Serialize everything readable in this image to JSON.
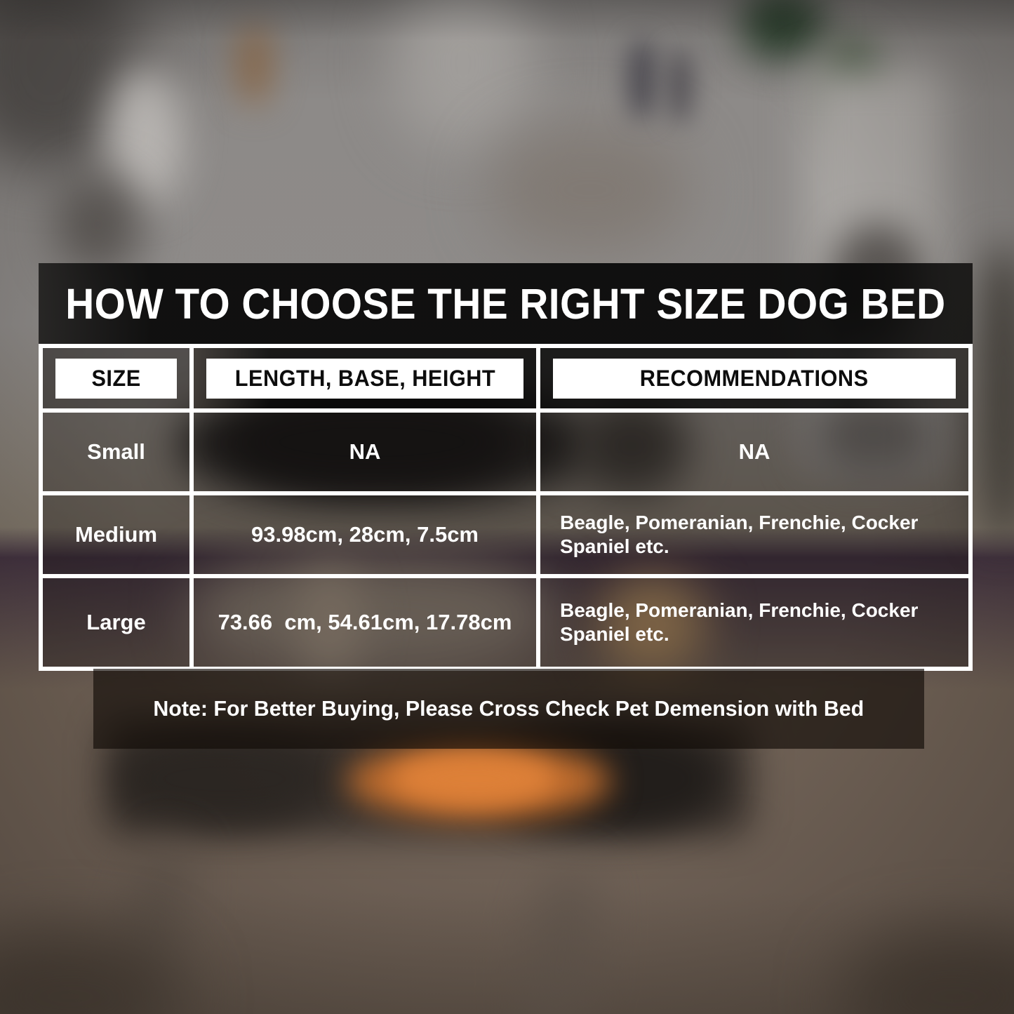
{
  "banner": {
    "title": "HOW TO CHOOSE THE RIGHT SIZE DOG BED"
  },
  "table": {
    "headers": [
      "SIZE",
      "LENGTH, BASE, HEIGHT",
      "RECOMMENDATIONS"
    ],
    "rows": [
      {
        "size": "Small",
        "dimensions": "NA",
        "recommendations": "NA"
      },
      {
        "size": "Medium",
        "dimensions": "93.98cm, 28cm, 7.5cm",
        "recommendations": "Beagle, Pomeranian, Frenchie, Cocker Spaniel etc."
      },
      {
        "size": "Large",
        "dimensions": "73.66  cm, 54.61cm, 17.78cm",
        "recommendations": "Beagle, Pomeranian, Frenchie, Cocker Spaniel etc."
      }
    ]
  },
  "note": {
    "text": "Note: For Better Buying, Please Cross Check Pet Demension with Bed"
  },
  "colors": {
    "grid_line": "#ffffff",
    "banner_bg": "#0c0b0b",
    "accent_orange": "#d47a33",
    "floor_brown": "#6f6156",
    "wall_gray": "#8d8a88"
  }
}
